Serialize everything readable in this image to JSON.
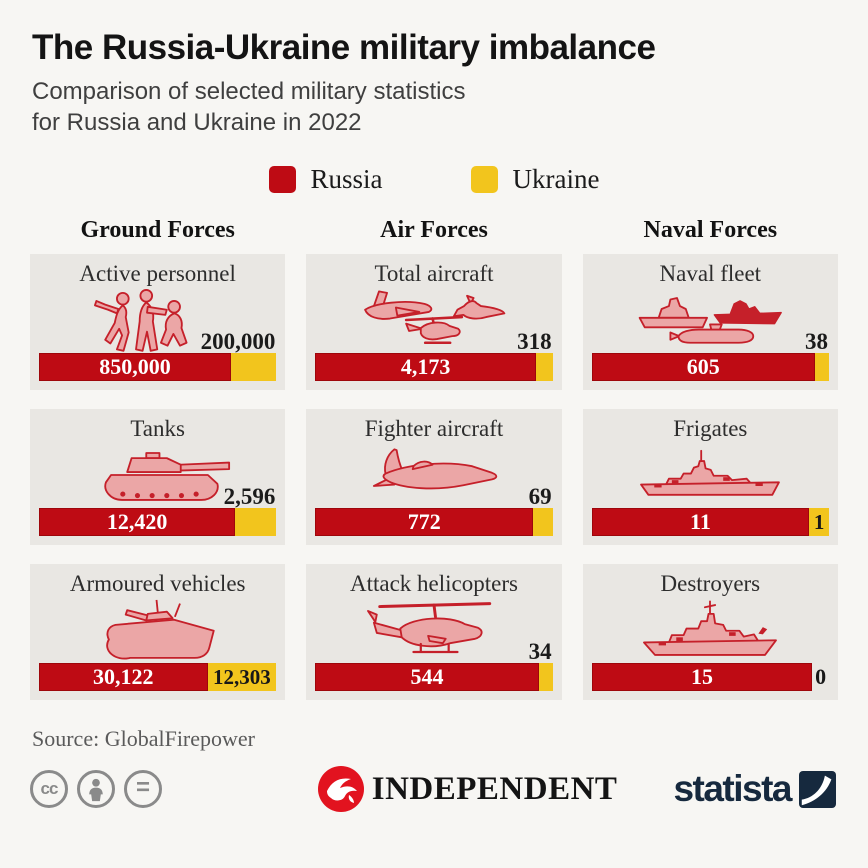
{
  "header": {
    "title": "The Russia-Ukraine military imbalance",
    "subtitle_line1": "Comparison of selected military statistics",
    "subtitle_line2": "for Russia and Ukraine in 2022"
  },
  "legend": {
    "items": [
      {
        "label": "Russia",
        "color": "#be0b14"
      },
      {
        "label": "Ukraine",
        "color": "#f2c51d"
      }
    ]
  },
  "colors": {
    "russia": "#be0b14",
    "ukraine": "#f2c51d",
    "card_background": "#e9e7e3",
    "page_background": "#f7f6f3",
    "statista_navy": "#16293e",
    "independent_red": "#e2131f"
  },
  "chart_data": {
    "type": "bar",
    "title": "The Russia-Ukraine military imbalance",
    "subtitle": "Comparison of selected military statistics for Russia and Ukraine in 2022",
    "series": [
      {
        "name": "Russia"
      },
      {
        "name": "Ukraine"
      }
    ],
    "legend_position": "top-center",
    "groups": [
      {
        "label": "Ground Forces",
        "cards": [
          {
            "metric": "Active personnel",
            "icon": "soldiers",
            "russia": 850000,
            "ukraine": 200000,
            "russia_label": "850,000",
            "ukraine_label": "200,000",
            "ukraine_label_position": "above"
          },
          {
            "metric": "Tanks",
            "icon": "tank",
            "russia": 12420,
            "ukraine": 2596,
            "russia_label": "12,420",
            "ukraine_label": "2,596",
            "ukraine_label_position": "above"
          },
          {
            "metric": "Armoured vehicles",
            "icon": "armoured",
            "russia": 30122,
            "ukraine": 12303,
            "russia_label": "30,122",
            "ukraine_label": "12,303",
            "ukraine_label_position": "inside"
          }
        ]
      },
      {
        "label": "Air Forces",
        "cards": [
          {
            "metric": "Total aircraft",
            "icon": "total-aircraft",
            "russia": 4173,
            "ukraine": 318,
            "russia_label": "4,173",
            "ukraine_label": "318",
            "ukraine_label_position": "above"
          },
          {
            "metric": "Fighter aircraft",
            "icon": "fighter",
            "russia": 772,
            "ukraine": 69,
            "russia_label": "772",
            "ukraine_label": "69",
            "ukraine_label_position": "above"
          },
          {
            "metric": "Attack helicopters",
            "icon": "helicopter",
            "russia": 544,
            "ukraine": 34,
            "russia_label": "544",
            "ukraine_label": "34",
            "ukraine_label_position": "above"
          }
        ]
      },
      {
        "label": "Naval Forces",
        "cards": [
          {
            "metric": "Naval fleet",
            "icon": "naval-fleet",
            "russia": 605,
            "ukraine": 38,
            "russia_label": "605",
            "ukraine_label": "38",
            "ukraine_label_position": "above"
          },
          {
            "metric": "Frigates",
            "icon": "frigate",
            "russia": 11,
            "ukraine": 1,
            "russia_label": "11",
            "ukraine_label": "1",
            "ukraine_label_position": "inside"
          },
          {
            "metric": "Destroyers",
            "icon": "destroyer",
            "russia": 15,
            "ukraine": 0,
            "russia_label": "15",
            "ukraine_label": "0",
            "ukraine_label_position": "outside"
          }
        ]
      }
    ]
  },
  "source": {
    "text": "Source: GlobalFirepower"
  },
  "footer": {
    "cc_badges": [
      {
        "name": "creative-commons",
        "glyph": "cc"
      },
      {
        "name": "attribution",
        "glyph": "person"
      },
      {
        "name": "no-derivatives",
        "glyph": "="
      }
    ],
    "independent_label": "INDEPENDENT",
    "statista_label": "statista"
  }
}
